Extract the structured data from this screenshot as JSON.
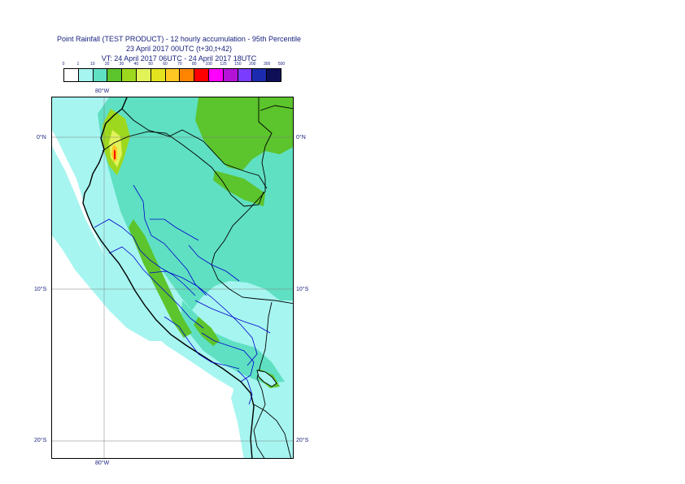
{
  "title": {
    "line1": "Point Rainfall (TEST PRODUCT) - 12 hourly accumulation - 95th Percentile",
    "line2": "23 April 2017 00UTC (t+30,t+42)",
    "line3": "VT: 24 April 2017 06UTC - 24 April 2017 18UTC"
  },
  "legend": {
    "ticks": [
      "0",
      "1",
      "10",
      "20",
      "30",
      "40",
      "50",
      "60",
      "70",
      "80",
      "100",
      "125",
      "150",
      "200",
      "300",
      "500"
    ],
    "colors": [
      "#ffffff",
      "#a6f5f0",
      "#5fe0c2",
      "#5cc42c",
      "#9ed81e",
      "#e2f35a",
      "#e3e320",
      "#ffc822",
      "#ff8400",
      "#ff0000",
      "#ff00ff",
      "#b512d8",
      "#7a3cff",
      "#1c2aaf",
      "#0f0f58"
    ]
  },
  "axes": {
    "lon_top": "80°W",
    "lon_bottom": "80°W",
    "lat_left": [
      "0°N",
      "10°S",
      "20°S"
    ],
    "lat_right": [
      "0°N",
      "10°S",
      "20°S"
    ]
  },
  "map_colors": {
    "ocean": "#ffffff",
    "light_cyan": "#a6f5f0",
    "teal": "#5fe0c2",
    "green": "#5cc42c",
    "yellow_green": "#9ed81e",
    "yellow": "#e2f35a",
    "orange": "#ffc822",
    "red": "#ff0000",
    "coastline": "#000000",
    "admin_border": "#0000cc",
    "grid": "#7f7f7f"
  }
}
